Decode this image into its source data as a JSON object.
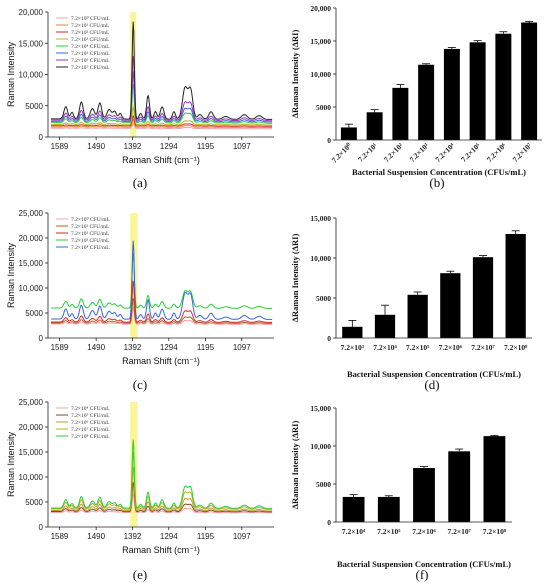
{
  "chart_data": [
    {
      "panel": "(a)",
      "type": "line",
      "xlabel": "Raman Shift (cm⁻¹)",
      "ylabel": "Raman Intensity",
      "x_ticks": [
        "1589",
        "1490",
        "1392",
        "1294",
        "1195",
        "1097"
      ],
      "y_ticks": [
        "0",
        "5000",
        "10,000",
        "15,000",
        "20,000"
      ],
      "ylim": [
        0,
        20000
      ],
      "xlim": [
        1620,
        1010
      ],
      "x_axis_reversed": true,
      "highlight_band": [
        1398,
        1382
      ],
      "series": [
        {
          "name": "7.2×10⁰ CFU/mL",
          "color": "#f4a4a4",
          "peak": 2200,
          "base": 1400
        },
        {
          "name": "7.2×10¹ CFU/mL",
          "color": "#e08a3c",
          "peak": 2800,
          "base": 1600
        },
        {
          "name": "7.2×10² CFU/mL",
          "color": "#d62b2b",
          "peak": 3400,
          "base": 1800
        },
        {
          "name": "7.2×10³ CFU/mL",
          "color": "#b8b020",
          "peak": 4800,
          "base": 2000
        },
        {
          "name": "7.2×10⁴ CFU/mL",
          "color": "#2ecc40",
          "peak": 8500,
          "base": 2300
        },
        {
          "name": "7.2×10⁵ CFU/mL",
          "color": "#3a66d6",
          "peak": 10500,
          "base": 2500
        },
        {
          "name": "7.2×10⁶ CFU/mL",
          "color": "#9b2fc9",
          "peak": 13000,
          "base": 2700
        },
        {
          "name": "7.2×10⁷ CFU/mL",
          "color": "#222222",
          "peak": 18500,
          "base": 2900
        }
      ]
    },
    {
      "panel": "(b)",
      "type": "bar",
      "xlabel": "Bacterial Suspension Concentration (CFUs/mL)",
      "ylabel": "ΔRaman Intensity (ΔRI)",
      "categories": [
        "7.2×10⁰",
        "7.2×10¹",
        "7.2×10²",
        "7.2×10³",
        "7.2×10⁴",
        "7.2×10⁵",
        "7.2×10⁶",
        "7.2×10⁷"
      ],
      "values": [
        1900,
        4200,
        7900,
        11400,
        13800,
        14800,
        16100,
        17800
      ],
      "errors": [
        500,
        400,
        500,
        150,
        200,
        250,
        300,
        150
      ],
      "y_ticks": [
        "0",
        "5000",
        "10,000",
        "15,000",
        "20,000"
      ],
      "ylim": [
        0,
        20000
      ]
    },
    {
      "panel": "(c)",
      "type": "line",
      "xlabel": "Raman Shift (cm⁻¹)",
      "ylabel": "Raman Intensity",
      "x_ticks": [
        "1589",
        "1490",
        "1392",
        "1294",
        "1195",
        "1097"
      ],
      "y_ticks": [
        "0",
        "5000",
        "10,000",
        "15,000",
        "20,000",
        "25,000"
      ],
      "ylim": [
        0,
        25000
      ],
      "xlim": [
        1620,
        1010
      ],
      "x_axis_reversed": true,
      "highlight_band": [
        1398,
        1378
      ],
      "series": [
        {
          "name": "7.2×10⁰ CFU/mL",
          "color": "#f4a4a4",
          "peak": 6000,
          "base": 2800
        },
        {
          "name": "7.2×10¹ CFU/mL",
          "color": "#b06030",
          "peak": 8000,
          "base": 3000
        },
        {
          "name": "7.2×10² CFU/mL",
          "color": "#d62b2b",
          "peak": 11500,
          "base": 3200
        },
        {
          "name": "7.2×10³ CFU/mL",
          "color": "#2ecc40",
          "peak": 17000,
          "base": 6000
        },
        {
          "name": "7.2×10⁴ CFU/mL",
          "color": "#3a66d6",
          "peak": 19500,
          "base": 3800
        }
      ]
    },
    {
      "panel": "(d)",
      "type": "bar",
      "xlabel": "Bacterial Suspension Concentration (CFUs/mL)",
      "ylabel": "ΔRaman Intensity (ΔRI)",
      "categories": [
        "7.2×10³",
        "7.2×10⁴",
        "7.2×10⁵",
        "7.2×10⁶",
        "7.2×10⁷",
        "7.2×10⁸"
      ],
      "values": [
        1400,
        2900,
        5400,
        8100,
        10100,
        13000
      ],
      "errors": [
        800,
        1200,
        350,
        250,
        200,
        400
      ],
      "y_ticks": [
        "0",
        "5000",
        "10,000",
        "15,000"
      ],
      "ylim": [
        0,
        15000
      ]
    },
    {
      "panel": "(e)",
      "type": "line",
      "xlabel": "Raman Shift (cm⁻¹)",
      "ylabel": "Raman Intensity",
      "x_ticks": [
        "1589",
        "1490",
        "1392",
        "1294",
        "1195",
        "1097"
      ],
      "y_ticks": [
        "0",
        "5000",
        "10,000",
        "15,000",
        "20,000",
        "25,000"
      ],
      "ylim": [
        0,
        25000
      ],
      "xlim": [
        1620,
        1010
      ],
      "x_axis_reversed": true,
      "highlight_band": [
        1398,
        1378
      ],
      "series": [
        {
          "name": "7.2×10⁴ CFU/mL",
          "color": "#f4a4a4",
          "peak": 6500,
          "base": 2900
        },
        {
          "name": "7.2×10⁵ CFU/mL",
          "color": "#7a4a2a",
          "peak": 9000,
          "base": 3100
        },
        {
          "name": "7.2×10⁶ CFU/mL",
          "color": "#c99a30",
          "peak": 12000,
          "base": 3300
        },
        {
          "name": "7.2×10⁷ CFU/mL",
          "color": "#b8b020",
          "peak": 15000,
          "base": 3600
        },
        {
          "name": "7.2×10⁸ CFU/mL",
          "color": "#2ecc40",
          "peak": 17500,
          "base": 3800
        }
      ]
    },
    {
      "panel": "(f)",
      "type": "bar",
      "xlabel": "Bacterial Suspension Concentration (CFUs/mL)",
      "ylabel": "ΔRaman Intensity (ΔRI)",
      "categories": [
        "7.2×10⁴",
        "7.2×10⁵",
        "7.2×10⁶",
        "7.2×10⁷",
        "7.2×10⁸"
      ],
      "values": [
        3300,
        3300,
        7100,
        9300,
        11300
      ],
      "errors": [
        300,
        150,
        200,
        300,
        100
      ],
      "y_ticks": [
        "0",
        "5000",
        "10,000",
        "15,000"
      ],
      "ylim": [
        0,
        15000
      ]
    }
  ]
}
